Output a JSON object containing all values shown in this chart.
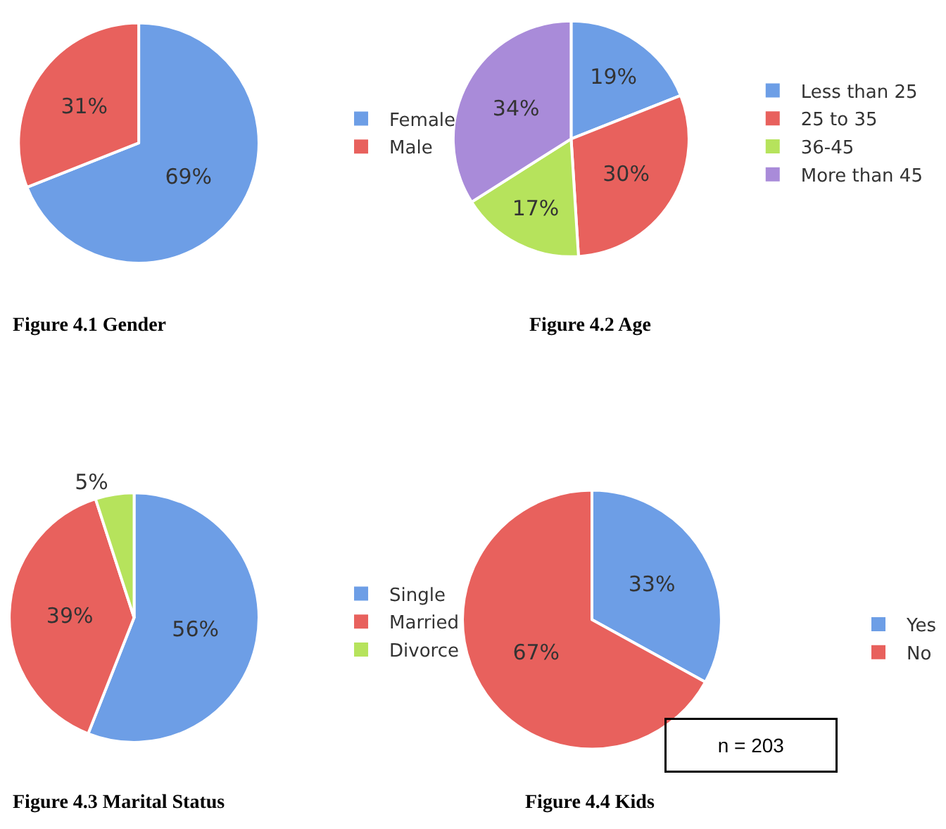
{
  "chart_data": [
    {
      "type": "pie",
      "title": "Figure 4.1 Gender",
      "categories": [
        "Female",
        "Male"
      ],
      "values": [
        69,
        31
      ],
      "colors": [
        "#6d9ee6",
        "#e8615d"
      ],
      "value_labels": [
        "69%",
        "31%"
      ],
      "legend": "right"
    },
    {
      "type": "pie",
      "title": "Figure 4.2 Age",
      "categories": [
        "Less than 25",
        "25 to 35",
        "36-45",
        "More than 45"
      ],
      "values": [
        19,
        30,
        17,
        34
      ],
      "colors": [
        "#6d9ee6",
        "#e8615d",
        "#b6e35c",
        "#a98bd9"
      ],
      "value_labels": [
        "19%",
        "30%",
        "17%",
        "34%"
      ],
      "legend": "right"
    },
    {
      "type": "pie",
      "title": "Figure 4.3 Marital Status",
      "categories": [
        "Single",
        "Married",
        "Divorce"
      ],
      "values": [
        56,
        39,
        5
      ],
      "colors": [
        "#6d9ee6",
        "#e8615d",
        "#b6e35c"
      ],
      "value_labels": [
        "56%",
        "39%",
        "5%"
      ],
      "legend": "right"
    },
    {
      "type": "pie",
      "title": "Figure 4.4 Kids",
      "categories": [
        "Yes",
        "No"
      ],
      "values": [
        33,
        67
      ],
      "colors": [
        "#6d9ee6",
        "#e8615d"
      ],
      "value_labels": [
        "33%",
        "67%"
      ],
      "legend": "right",
      "annotations": [
        "n = 203"
      ]
    }
  ]
}
